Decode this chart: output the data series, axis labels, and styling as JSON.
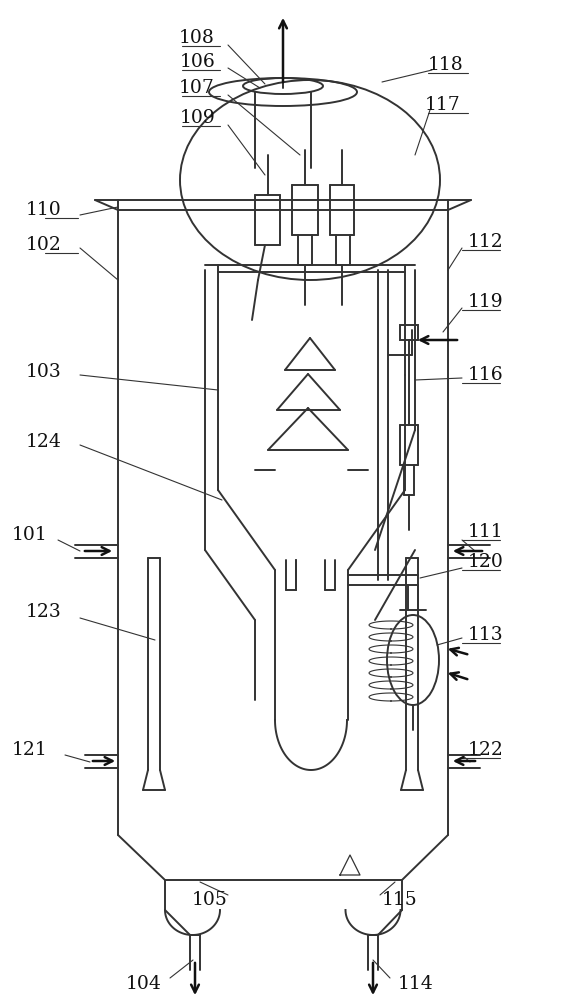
{
  "bg_color": "#ffffff",
  "lc": "#333333",
  "lw": 1.4,
  "tlw": 0.9,
  "fig_w": 5.66,
  "fig_h": 10.0,
  "dpi": 100
}
